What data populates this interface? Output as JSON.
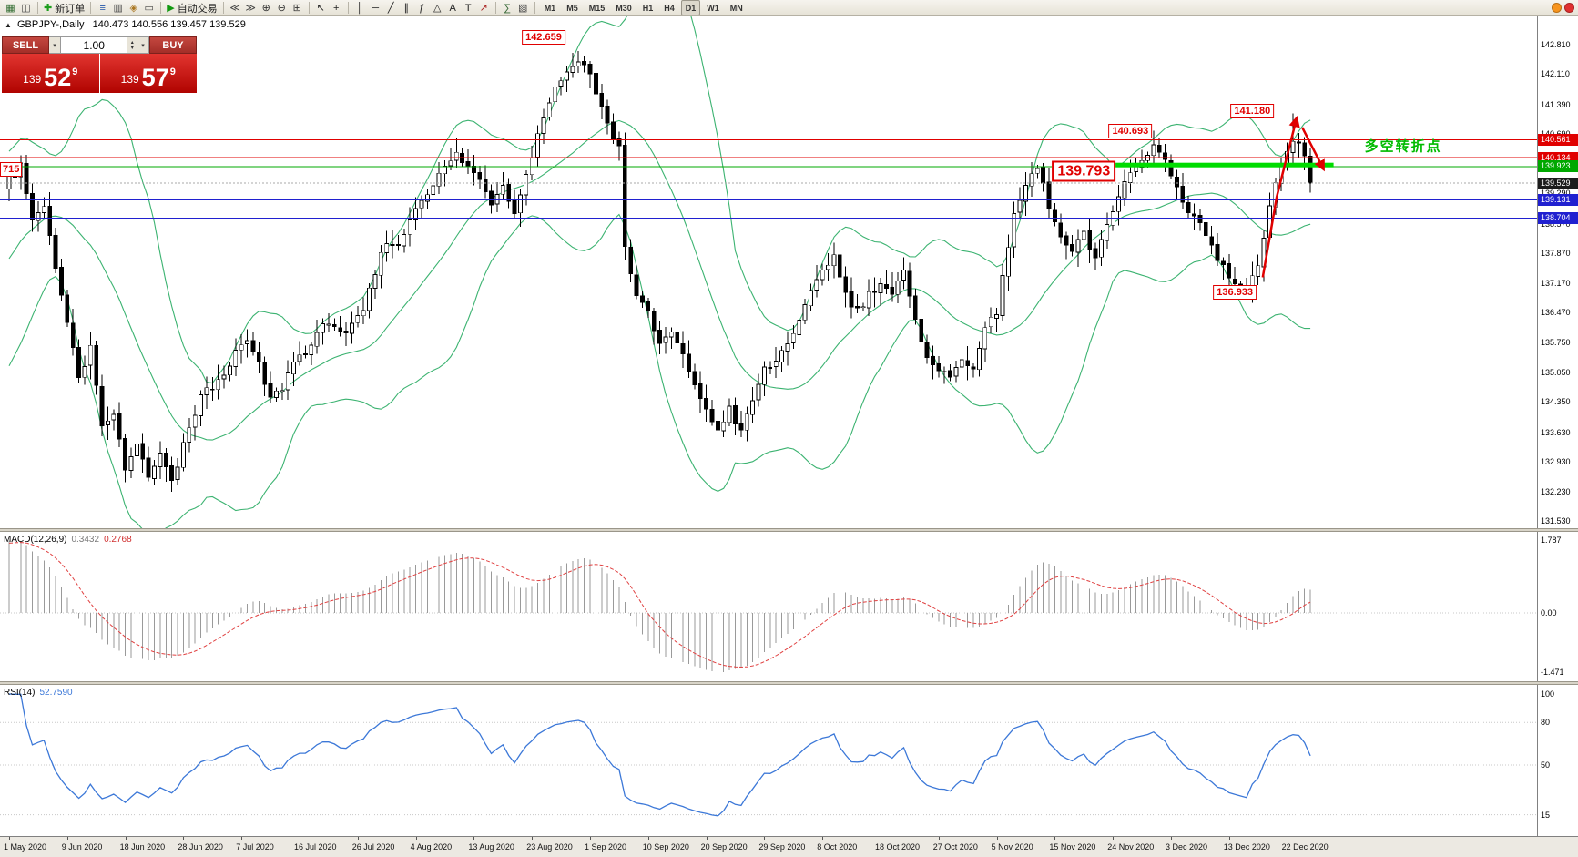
{
  "toolbar": {
    "groups": [
      {
        "items": [
          {
            "name": "new-chart-button",
            "icon": "new-chart-icon",
            "glyph": "▦",
            "color": "#2F6B2F"
          },
          {
            "name": "profiles-button",
            "icon": "profiles-icon",
            "glyph": "◫",
            "color": "#444444"
          }
        ]
      },
      {
        "items": [
          {
            "name": "new-order-button",
            "icon": "new-order-icon",
            "glyph": "✚",
            "color": "#1E9E1E",
            "label": "新订单"
          }
        ]
      },
      {
        "items": [
          {
            "name": "market-watch-button",
            "icon": "market-watch-icon",
            "glyph": "≡",
            "color": "#2255AA"
          },
          {
            "name": "data-window-button",
            "icon": "data-window-icon",
            "glyph": "▥",
            "color": "#444444"
          },
          {
            "name": "navigator-button",
            "icon": "navigator-icon",
            "glyph": "◈",
            "color": "#AA7722"
          },
          {
            "name": "terminal-button",
            "icon": "terminal-icon",
            "glyph": "▭",
            "color": "#444444"
          }
        ]
      },
      {
        "items": [
          {
            "name": "autotrading-button",
            "icon": "autotrading-icon",
            "glyph": "▶",
            "color": "#119911",
            "label": "自动交易"
          }
        ]
      },
      {
        "items": [
          {
            "name": "chart-shift-button",
            "icon": "chart-shift-icon",
            "glyph": "≪",
            "color": "#444444"
          },
          {
            "name": "auto-scroll-button",
            "icon": "auto-scroll-icon",
            "glyph": "≫",
            "color": "#444444"
          },
          {
            "name": "zoom-in-button",
            "icon": "zoom-in-icon",
            "glyph": "⊕",
            "color": "#333333"
          },
          {
            "name": "zoom-out-button",
            "icon": "zoom-out-icon",
            "glyph": "⊖",
            "color": "#333333"
          },
          {
            "name": "tile-windows-button",
            "icon": "tile-windows-icon",
            "glyph": "⊞",
            "color": "#333333"
          }
        ]
      },
      {
        "items": [
          {
            "name": "cursor-button",
            "icon": "cursor-icon",
            "glyph": "↖",
            "color": "#222222"
          },
          {
            "name": "crosshair-button",
            "icon": "crosshair-icon",
            "glyph": "+",
            "color": "#222222"
          }
        ]
      },
      {
        "items": [
          {
            "name": "vertical-line-button",
            "icon": "vertical-line-icon",
            "glyph": "│",
            "color": "#222222"
          },
          {
            "name": "horizontal-line-button",
            "icon": "horizontal-line-icon",
            "glyph": "─",
            "color": "#222222"
          },
          {
            "name": "trendline-button",
            "icon": "trendline-icon",
            "glyph": "╱",
            "color": "#222222"
          },
          {
            "name": "channel-button",
            "icon": "channel-icon",
            "glyph": "∥",
            "color": "#222222"
          },
          {
            "name": "fibonacci-button",
            "icon": "fibonacci-icon",
            "glyph": "ƒ",
            "color": "#222222"
          },
          {
            "name": "shapes-button",
            "icon": "shapes-icon",
            "glyph": "△",
            "color": "#222222"
          },
          {
            "name": "text-button",
            "icon": "text-icon",
            "glyph": "A",
            "color": "#222222"
          },
          {
            "name": "label-button",
            "icon": "label-icon",
            "glyph": "T",
            "color": "#222222"
          },
          {
            "name": "arrows-button",
            "icon": "arrows-icon",
            "glyph": "↗",
            "color": "#AA2222"
          }
        ]
      },
      {
        "items": [
          {
            "name": "indicators-button",
            "icon": "indicators-icon",
            "glyph": "∑",
            "color": "#336633"
          },
          {
            "name": "templates-button",
            "icon": "templates-icon",
            "glyph": "▧",
            "color": "#444444"
          }
        ]
      }
    ],
    "timeframes": [
      "M1",
      "M5",
      "M15",
      "M30",
      "H1",
      "H4",
      "D1",
      "W1",
      "MN"
    ],
    "active_timeframe": "D1",
    "right_icons": [
      {
        "name": "community-icon",
        "color": "#F7941D"
      },
      {
        "name": "alerts-icon",
        "color": "#E03030"
      }
    ]
  },
  "chart_header": {
    "toggle_icon": "▲",
    "symbol": "GBPJPY-,Daily",
    "ohlc": "140.473 140.556 139.457 139.529"
  },
  "trade_panel": {
    "sell_label": "SELL",
    "buy_label": "BUY",
    "volume": "1.00",
    "dd_glyph": "▾",
    "spin_up_glyph": "▴",
    "spin_down_glyph": "▾",
    "bid_small": "139",
    "bid_big": "52",
    "bid_sup": "9",
    "ask_small": "139",
    "ask_big": "57",
    "ask_sup": "9"
  },
  "chart_data": {
    "type": "candlestick",
    "title": "GBPJPY- Daily",
    "bar_count": 225,
    "last_close": 139.529,
    "y_axis": {
      "min": 131.53,
      "max": 142.81,
      "labels": [
        "142.810",
        "142.110",
        "141.390",
        "140.690",
        "139.990",
        "139.290",
        "138.570",
        "137.870",
        "137.170",
        "136.470",
        "135.750",
        "135.050",
        "134.350",
        "133.630",
        "132.930",
        "132.230",
        "131.530"
      ]
    },
    "x_labels": [
      "1 May 2020",
      "9 Jun 2020",
      "18 Jun 2020",
      "28 Jun 2020",
      "7 Jul 2020",
      "16 Jul 2020",
      "26 Jul 2020",
      "4 Aug 2020",
      "13 Aug 2020",
      "23 Aug 2020",
      "1 Sep 2020",
      "10 Sep 2020",
      "20 Sep 2020",
      "29 Sep 2020",
      "8 Oct 2020",
      "18 Oct 2020",
      "27 Oct 2020",
      "5 Nov 2020",
      "15 Nov 2020",
      "24 Nov 2020",
      "3 Dec 2020",
      "13 Dec 2020",
      "22 Dec 2020"
    ],
    "close_anchors": [
      [
        0,
        139.6
      ],
      [
        2,
        139.9
      ],
      [
        4,
        138.6
      ],
      [
        6,
        139.0
      ],
      [
        8,
        137.6
      ],
      [
        10,
        136.2
      ],
      [
        12,
        134.9
      ],
      [
        14,
        135.6
      ],
      [
        16,
        133.7
      ],
      [
        18,
        134.1
      ],
      [
        20,
        132.7
      ],
      [
        22,
        133.4
      ],
      [
        24,
        132.5
      ],
      [
        26,
        133.1
      ],
      [
        28,
        132.4
      ],
      [
        30,
        133.3
      ],
      [
        33,
        134.5
      ],
      [
        36,
        134.8
      ],
      [
        38,
        135.3
      ],
      [
        41,
        135.8
      ],
      [
        43,
        135.2
      ],
      [
        45,
        134.4
      ],
      [
        47,
        134.7
      ],
      [
        49,
        135.3
      ],
      [
        52,
        135.7
      ],
      [
        55,
        136.3
      ],
      [
        58,
        135.9
      ],
      [
        61,
        136.5
      ],
      [
        63,
        137.4
      ],
      [
        65,
        138.2
      ],
      [
        67,
        138.0
      ],
      [
        69,
        138.7
      ],
      [
        71,
        139.2
      ],
      [
        73,
        139.5
      ],
      [
        75,
        139.9
      ],
      [
        77,
        140.2
      ],
      [
        79,
        139.9
      ],
      [
        81,
        139.6
      ],
      [
        83,
        139.1
      ],
      [
        85,
        139.5
      ],
      [
        87,
        138.9
      ],
      [
        89,
        139.7
      ],
      [
        91,
        140.7
      ],
      [
        93,
        141.5
      ],
      [
        95,
        142.0
      ],
      [
        97,
        142.3
      ],
      [
        98,
        142.5
      ],
      [
        100,
        142.1
      ],
      [
        101,
        141.7
      ],
      [
        103,
        140.9
      ],
      [
        105,
        140.4
      ],
      [
        106,
        138.0
      ],
      [
        108,
        136.9
      ],
      [
        110,
        136.4
      ],
      [
        112,
        135.7
      ],
      [
        114,
        136.0
      ],
      [
        116,
        135.4
      ],
      [
        118,
        134.8
      ],
      [
        120,
        134.1
      ],
      [
        122,
        133.7
      ],
      [
        124,
        134.2
      ],
      [
        126,
        133.6
      ],
      [
        128,
        134.4
      ],
      [
        130,
        135.1
      ],
      [
        132,
        135.3
      ],
      [
        134,
        135.8
      ],
      [
        136,
        136.2
      ],
      [
        138,
        136.9
      ],
      [
        140,
        137.5
      ],
      [
        142,
        137.8
      ],
      [
        144,
        136.9
      ],
      [
        146,
        136.5
      ],
      [
        148,
        136.9
      ],
      [
        150,
        137.2
      ],
      [
        152,
        136.9
      ],
      [
        154,
        137.4
      ],
      [
        156,
        136.2
      ],
      [
        158,
        135.5
      ],
      [
        160,
        135.1
      ],
      [
        162,
        134.9
      ],
      [
        164,
        135.4
      ],
      [
        166,
        135.2
      ],
      [
        168,
        136.0
      ],
      [
        170,
        136.5
      ],
      [
        171,
        137.4
      ],
      [
        173,
        138.7
      ],
      [
        175,
        139.5
      ],
      [
        177,
        139.9
      ],
      [
        179,
        139.0
      ],
      [
        181,
        138.2
      ],
      [
        183,
        137.9
      ],
      [
        185,
        138.3
      ],
      [
        187,
        137.7
      ],
      [
        189,
        138.5
      ],
      [
        191,
        139.3
      ],
      [
        193,
        139.8
      ],
      [
        195,
        140.0
      ],
      [
        197,
        140.4
      ],
      [
        199,
        140.1
      ],
      [
        201,
        139.4
      ],
      [
        203,
        138.9
      ],
      [
        205,
        138.6
      ],
      [
        207,
        138.0
      ],
      [
        209,
        137.5
      ],
      [
        211,
        137.2
      ],
      [
        213,
        137.0
      ],
      [
        215,
        137.5
      ],
      [
        217,
        139.1
      ],
      [
        219,
        140.0
      ],
      [
        220,
        140.3
      ],
      [
        221,
        140.5
      ],
      [
        222,
        140.4
      ],
      [
        223,
        140.2
      ],
      [
        224,
        139.529
      ]
    ],
    "prehistory_anchors": [
      [
        -45,
        131.7
      ],
      [
        -35,
        132.6
      ],
      [
        -25,
        134.2
      ],
      [
        -15,
        136.5
      ],
      [
        -8,
        138.2
      ],
      [
        -3,
        139.2
      ],
      [
        -1,
        139.4
      ]
    ],
    "extremes": {
      "98": {
        "high": 142.659
      },
      "221": {
        "high": 141.18
      },
      "213": {
        "low": 136.933
      }
    },
    "price_lines": [
      {
        "price": 140.561,
        "label": "140.561",
        "color": "#E00000"
      },
      {
        "price": 140.134,
        "label": "140.134",
        "color": "#E00000"
      },
      {
        "price": 139.923,
        "label": "139.923",
        "color": "#00A800"
      },
      {
        "price": 139.131,
        "label": "139.131",
        "color": "#2020D0"
      },
      {
        "price": 138.704,
        "label": "138.704",
        "color": "#2020D0"
      }
    ],
    "current_price": {
      "value": 139.529,
      "label": "139.529",
      "tag_bg": "#1C1C1C"
    },
    "highlight_segment": {
      "price": 139.96,
      "bar_start": 190,
      "bar_end": 228,
      "color": "#00DC00",
      "thickness": 5
    },
    "annotations": [
      {
        "type": "box",
        "text": "142.659",
        "bar": 92,
        "price": 142.98
      },
      {
        "type": "box",
        "text": "141.180",
        "bar": 214,
        "price": 141.24
      },
      {
        "type": "box",
        "text": "140.693",
        "bar": 193,
        "price": 140.76
      },
      {
        "type": "box-large",
        "text": "139.793",
        "bar": 185,
        "price": 139.81
      },
      {
        "type": "box",
        "text": "136.933",
        "bar": 211,
        "price": 136.94
      },
      {
        "type": "text",
        "text": "多空转折点",
        "bar": 240,
        "price": 140.42,
        "color": "#00BB00"
      }
    ],
    "arrows": [
      {
        "name": "impulse-up-arrow",
        "color": "#E00000",
        "path": [
          [
            215.8,
            137.3
          ],
          [
            218.2,
            139.2
          ],
          [
            221.6,
            141.05
          ]
        ]
      },
      {
        "name": "pullback-down-arrow",
        "color": "#E00000",
        "path": [
          [
            222.6,
            140.85
          ],
          [
            226.2,
            139.88
          ]
        ]
      }
    ],
    "left_partial_label": {
      "text": "715",
      "price": 139.86
    },
    "indicators": {
      "bollinger": {
        "period": 20,
        "deviation": 2,
        "color": "#3CB371"
      },
      "macd": {
        "name": "MACD(12,26,9)",
        "main_value": "0.3432",
        "signal_value": "0.2768",
        "axis_labels": [
          "1.787",
          "0.00",
          "-1.471"
        ],
        "axis_values": [
          1.787,
          0.0,
          -1.471
        ],
        "hist_color": "#9A9A9A",
        "signal_color": "#E04040"
      },
      "rsi": {
        "name": "RSI(14)",
        "value": "52.7590",
        "axis_labels": [
          "100",
          "80",
          "50",
          "15"
        ],
        "axis_values": [
          100,
          80,
          50,
          15
        ],
        "levels": [
          80,
          50,
          15
        ],
        "color": "#3C78D8"
      }
    }
  }
}
